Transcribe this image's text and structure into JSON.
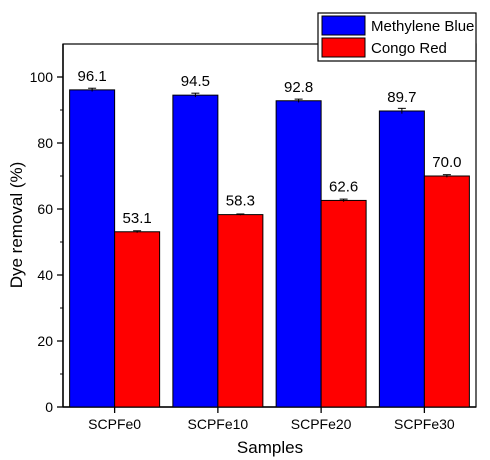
{
  "chart_data": {
    "type": "bar",
    "categories": [
      "SCPFe0",
      "SCPFe10",
      "SCPFe20",
      "SCPFe30"
    ],
    "series": [
      {
        "name": "Methylene Blue",
        "values": [
          96.1,
          94.5,
          92.8,
          89.7
        ],
        "labels": [
          "96.1",
          "94.5",
          "92.8",
          "89.7"
        ],
        "error": [
          0.5,
          0.6,
          0.5,
          0.8
        ],
        "color": "#0000ff"
      },
      {
        "name": "Congo Red",
        "values": [
          53.1,
          58.3,
          62.6,
          70.0
        ],
        "labels": [
          "53.1",
          "58.3",
          "62.6",
          "70.0"
        ],
        "error": [
          0.3,
          0.2,
          0.4,
          0.4
        ],
        "color": "#ff0000"
      }
    ],
    "title": "",
    "xlabel": "Samples",
    "ylabel": "Dye removal (%)",
    "ylim": [
      0,
      110
    ],
    "yticks": [
      0,
      20,
      40,
      60,
      80,
      100
    ],
    "ytick_labels": [
      "0",
      "20",
      "40",
      "60",
      "80",
      "100"
    ],
    "grid": false,
    "legend_position": "top-right"
  }
}
